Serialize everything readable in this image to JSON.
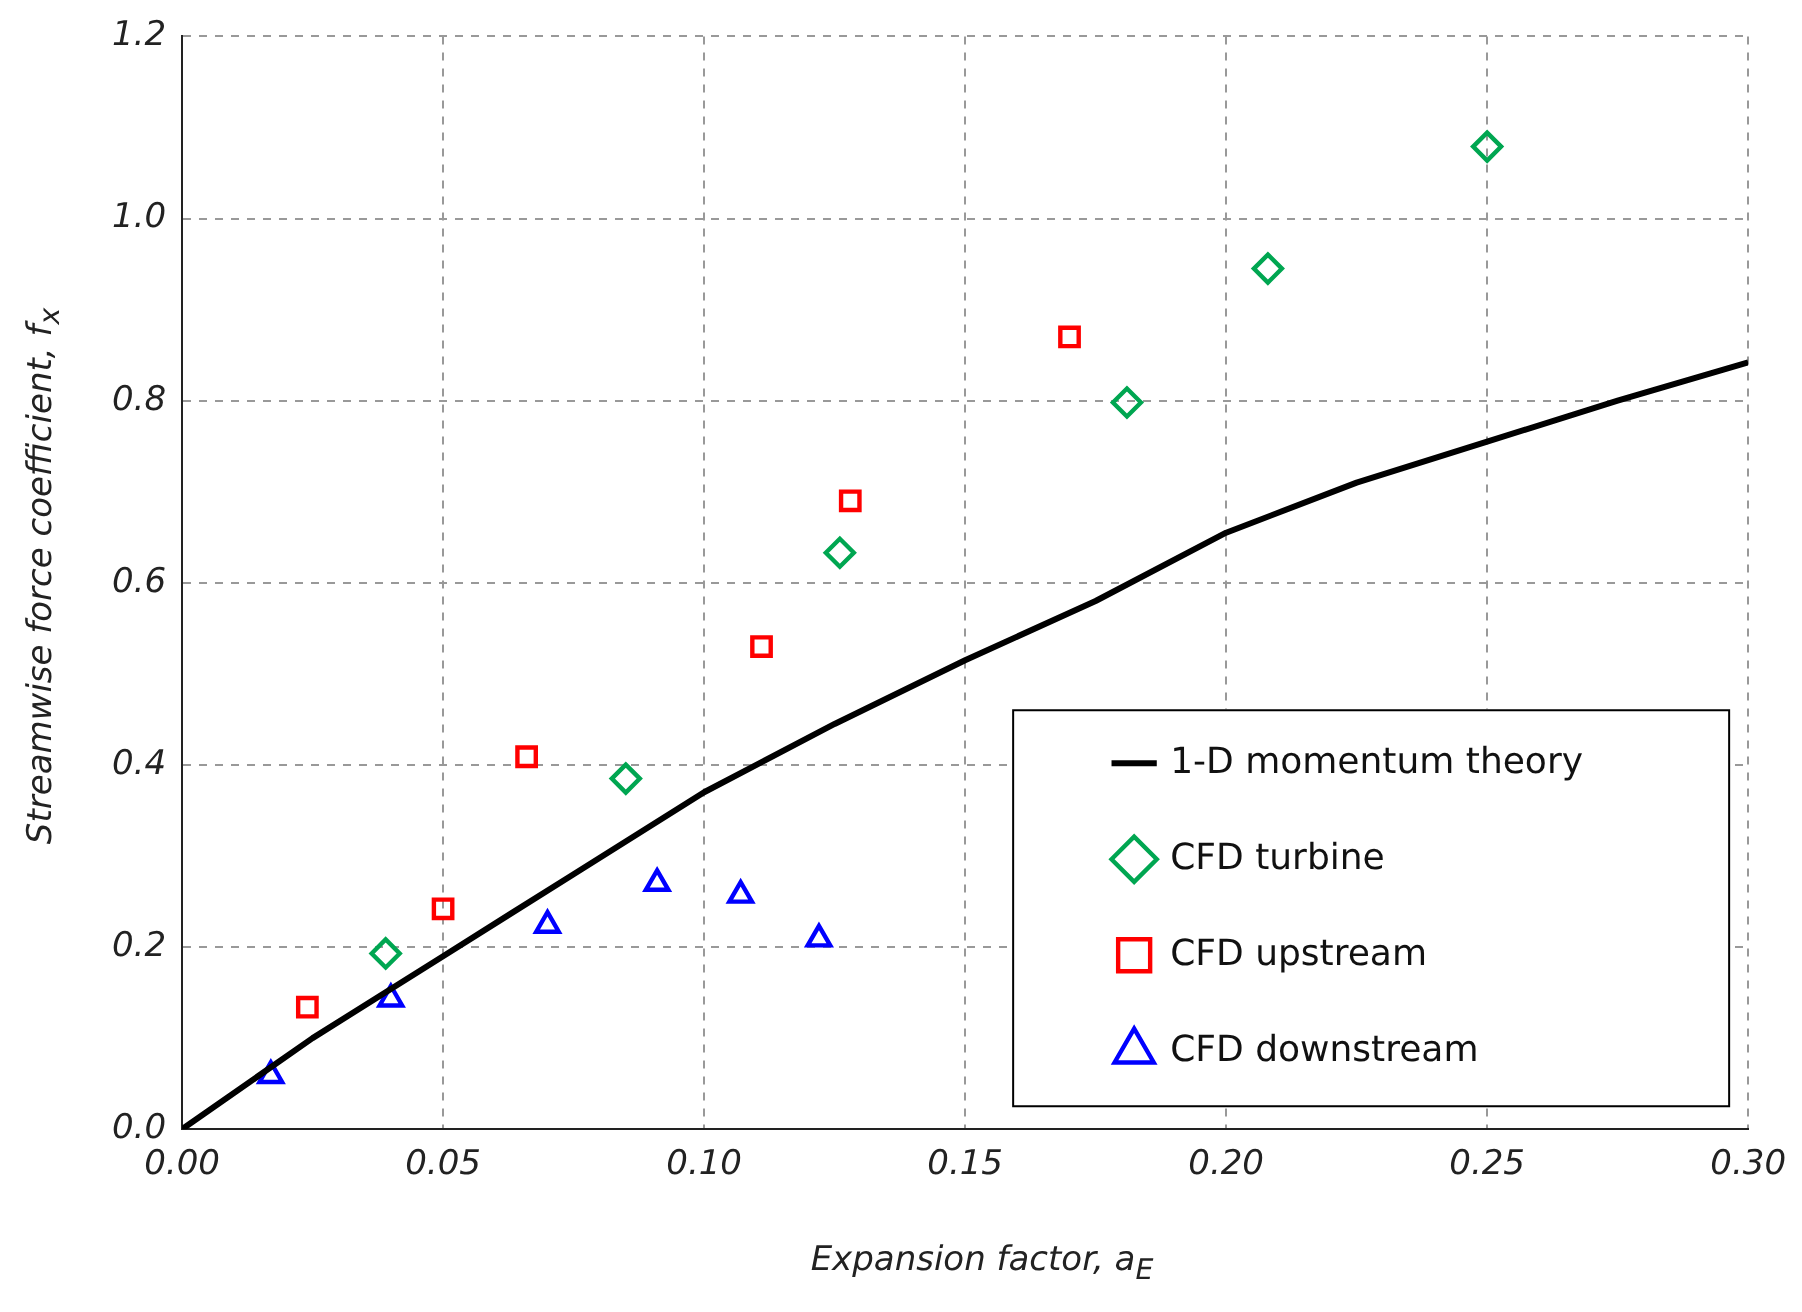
{
  "chart_data": {
    "type": "scatter",
    "xlabel": "Expansion factor, a$_{E}$",
    "ylabel": "Streamwise force coefficient, f$_{x}$",
    "xlim": [
      0,
      0.3
    ],
    "xticks": [
      {
        "value": 0,
        "label": "0.00"
      },
      {
        "value": 0.05,
        "label": "0.05"
      },
      {
        "value": 0.1,
        "label": "0.10"
      },
      {
        "value": 0.15,
        "label": "0.15"
      },
      {
        "value": 0.2,
        "label": "0.20"
      },
      {
        "value": 0.25,
        "label": "0.25"
      },
      {
        "value": 0.3,
        "label": "0.30"
      }
    ],
    "ylim": [
      0,
      1.2
    ],
    "yticks": [
      {
        "value": 0,
        "label": "0.0"
      },
      {
        "value": 0.2,
        "label": "0.2"
      },
      {
        "value": 0.4,
        "label": "0.4"
      },
      {
        "value": 0.6,
        "label": "0.6"
      },
      {
        "value": 0.8,
        "label": "0.8"
      },
      {
        "value": 1.0,
        "label": "1.0"
      },
      {
        "value": 1.2,
        "label": "1.2"
      }
    ],
    "grid": true,
    "legend": "bottom right",
    "series": [
      {
        "name": "1-D momentum theory",
        "type": "line",
        "color": "#000000",
        "marker": "none",
        "line_style": "solid",
        "x": [
          0,
          0.025,
          0.05,
          0.075,
          0.1,
          0.125,
          0.15,
          0.175,
          0.2,
          0.225,
          0.25,
          0.275,
          0.3
        ],
        "values": [
          0,
          0.1,
          0.19,
          0.28,
          0.37,
          0.445,
          0.515,
          0.58,
          0.655,
          0.71,
          0.755,
          0.8,
          0.842
        ]
      },
      {
        "name": "CFD turbine",
        "type": "scatter",
        "color": "#00a651",
        "marker": "diamond",
        "x": [
          0.039,
          0.085,
          0.126,
          0.181,
          0.208,
          0.25
        ],
        "values": [
          0.193,
          0.385,
          0.633,
          0.798,
          0.945,
          1.079
        ]
      },
      {
        "name": "CFD upstream",
        "type": "scatter",
        "color": "#ff0000",
        "marker": "square",
        "x": [
          0.024,
          0.05,
          0.066,
          0.111,
          0.128,
          0.17
        ],
        "values": [
          0.134,
          0.242,
          0.409,
          0.53,
          0.69,
          0.87
        ]
      },
      {
        "name": "CFD downstream",
        "type": "scatter",
        "color": "#0000ff",
        "marker": "triangle",
        "x": [
          0.017,
          0.04,
          0.07,
          0.091,
          0.107,
          0.122
        ],
        "values": [
          0.059,
          0.143,
          0.224,
          0.27,
          0.257,
          0.209
        ]
      }
    ]
  }
}
